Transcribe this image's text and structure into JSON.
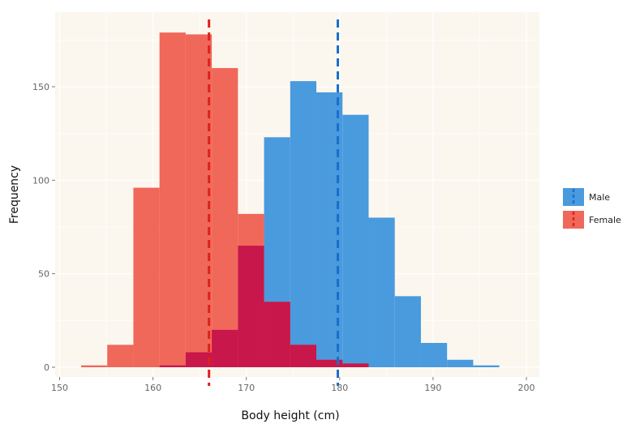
{
  "chart_data": {
    "type": "bar",
    "title": "",
    "xlabel": "Body height (cm)",
    "ylabel": "Frequency",
    "xlim": [
      150,
      200
    ],
    "ylim": [
      0,
      185
    ],
    "x_ticks": [
      150,
      160,
      170,
      180,
      190,
      200
    ],
    "y_ticks": [
      0,
      50,
      100,
      150
    ],
    "grid": true,
    "legend_position": "right",
    "bin_edges": [
      152.3,
      155.1,
      157.9,
      160.7,
      163.5,
      166.3,
      169.1,
      171.9,
      174.7,
      177.5,
      180.3,
      183.1,
      185.9,
      188.7,
      191.5,
      194.3,
      197.1,
      199.9
    ],
    "series": [
      {
        "name": "Female",
        "color": "#F0685A",
        "values": [
          1,
          12,
          96,
          179,
          178,
          160,
          82,
          35,
          12,
          4,
          2,
          0,
          0,
          0,
          0,
          0,
          0
        ],
        "mean": 166.0,
        "mean_line_color": "#E0201A"
      },
      {
        "name": "Male",
        "color": "#4A9ADE",
        "values": [
          0,
          0,
          0,
          1,
          8,
          20,
          65,
          123,
          153,
          147,
          135,
          80,
          38,
          13,
          4,
          1,
          0
        ],
        "mean": 179.8,
        "mean_line_color": "#1A6FCC"
      }
    ],
    "overlap_color": "#C8174A",
    "panel_background": "#FBF7EF"
  }
}
